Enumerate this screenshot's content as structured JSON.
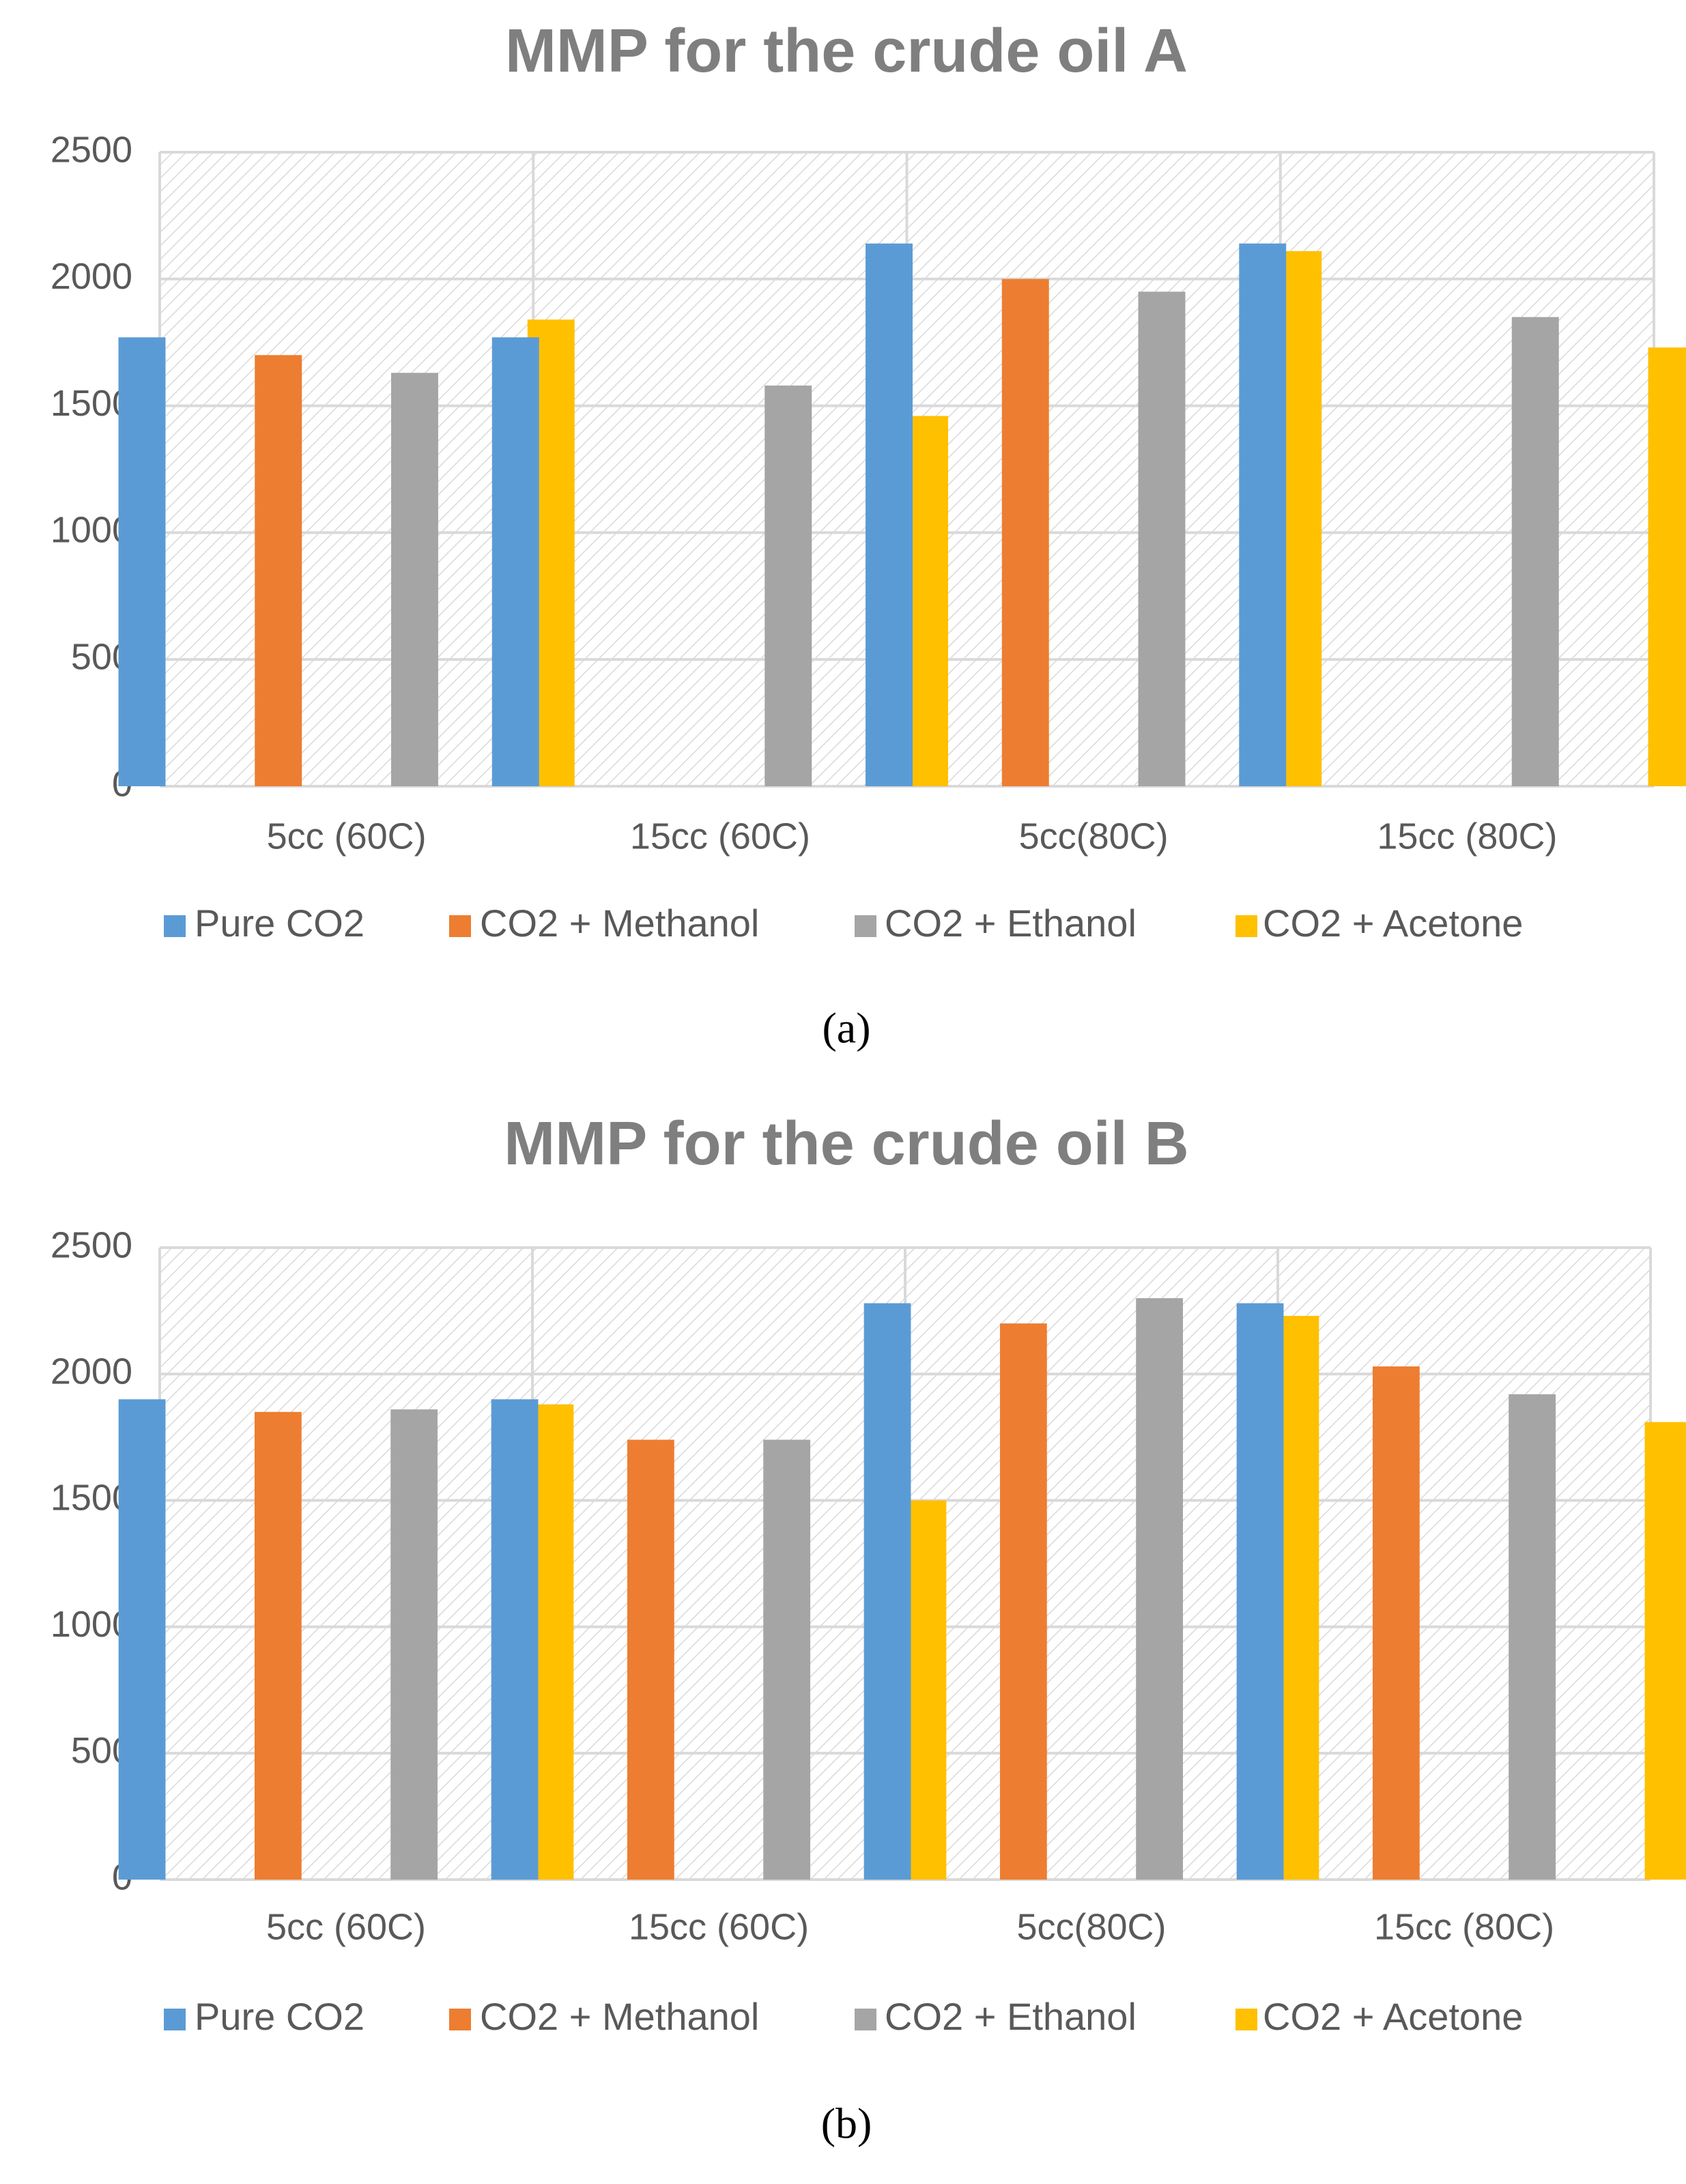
{
  "chart_data": [
    {
      "type": "bar",
      "title": "MMP for the crude oil A",
      "caption": "(a)",
      "categories": [
        "5cc (60C)",
        "15cc (60C)",
        "5cc(80C)",
        "15cc (80C)"
      ],
      "series": [
        {
          "name": "Pure CO2",
          "color": "#5b9bd5",
          "values": [
            1770,
            1770,
            2140,
            2140
          ]
        },
        {
          "name": "CO2 + Methanol",
          "color": "#ed7d31",
          "values": [
            1700,
            null,
            2000,
            null
          ]
        },
        {
          "name": "CO2 + Ethanol",
          "color": "#a5a5a5",
          "values": [
            1630,
            1580,
            1950,
            1850
          ]
        },
        {
          "name": "CO2 + Acetone",
          "color": "#ffc000",
          "values": [
            1840,
            1460,
            2110,
            1730
          ]
        }
      ],
      "ylim": [
        0,
        2500
      ],
      "yticks": [
        0,
        500,
        1000,
        1500,
        2000,
        2500
      ],
      "grid": true,
      "legend": "bottom"
    },
    {
      "type": "bar",
      "title": "MMP for the crude oil B",
      "caption": "(b)",
      "categories": [
        "5cc (60C)",
        "15cc (60C)",
        "5cc(80C)",
        "15cc (80C)"
      ],
      "series": [
        {
          "name": "Pure CO2",
          "color": "#5b9bd5",
          "values": [
            1900,
            1900,
            2280,
            2280
          ]
        },
        {
          "name": "CO2 + Methanol",
          "color": "#ed7d31",
          "values": [
            1850,
            1740,
            2200,
            2030
          ]
        },
        {
          "name": "CO2 + Ethanol",
          "color": "#a5a5a5",
          "values": [
            1860,
            1740,
            2300,
            1920
          ]
        },
        {
          "name": "CO2 + Acetone",
          "color": "#ffc000",
          "values": [
            1880,
            1500,
            2230,
            1810
          ]
        }
      ],
      "ylim": [
        0,
        2500
      ],
      "yticks": [
        0,
        500,
        1000,
        1500,
        2000,
        2500
      ],
      "grid": true,
      "legend": "bottom"
    }
  ]
}
